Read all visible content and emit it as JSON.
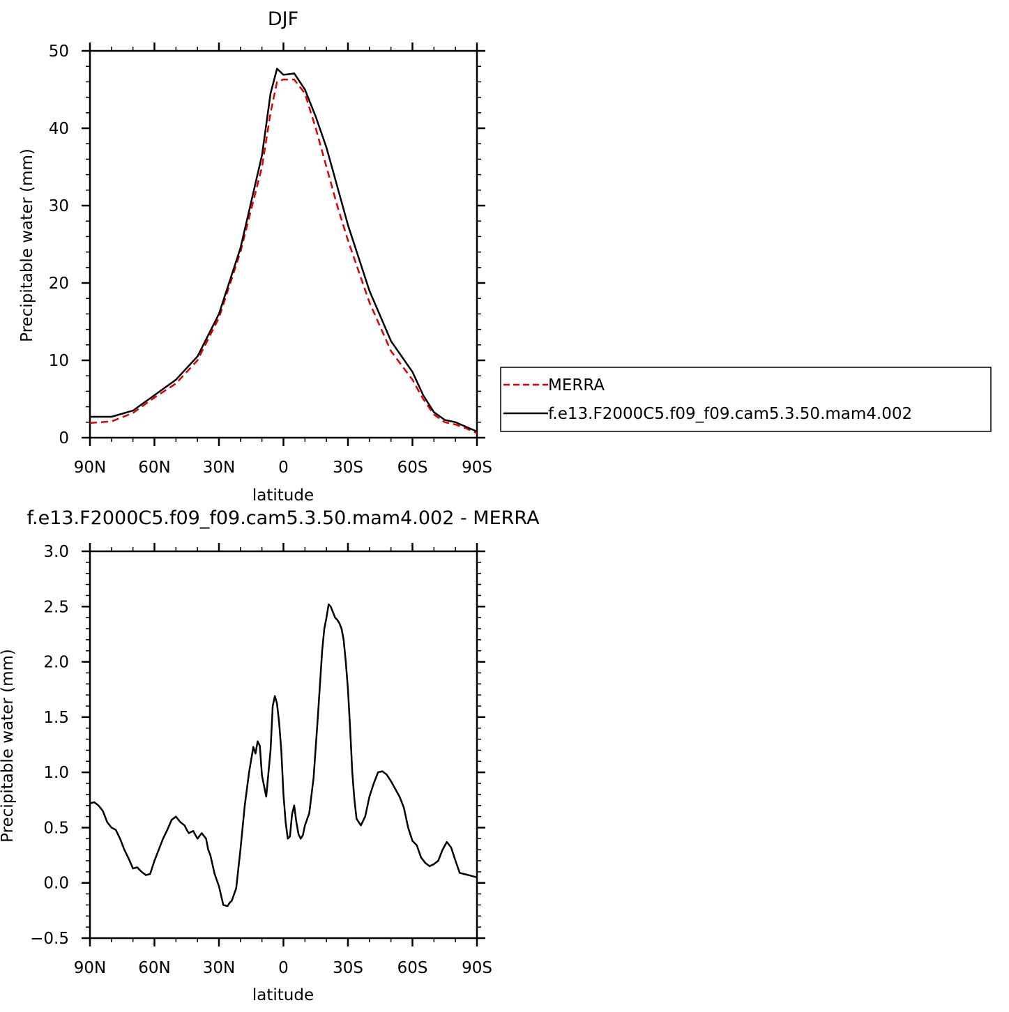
{
  "chart_data": [
    {
      "type": "line",
      "title": "DJF",
      "xlabel": "latitude",
      "ylabel": "Precipitable water  (mm)",
      "xlim": [
        -90,
        90
      ],
      "ylim": [
        0,
        50
      ],
      "x_ticks": [
        -90,
        -60,
        -30,
        0,
        30,
        60,
        90
      ],
      "x_tick_labels": [
        "90N",
        "60N",
        "30N",
        "0",
        "30S",
        "60S",
        "90S"
      ],
      "y_ticks": [
        0,
        10,
        20,
        30,
        40,
        50
      ],
      "y_tick_labels": [
        "0",
        "10",
        "20",
        "30",
        "40",
        "50"
      ],
      "legend_position": "right",
      "x_note": "x values are latitude from 90N (-90) to 90S (90)",
      "series": [
        {
          "name": "MERRA",
          "color": "#e00000",
          "dash": "dashed",
          "x": [
            -90,
            -80,
            -70,
            -60,
            -50,
            -40,
            -30,
            -20,
            -10,
            -6,
            -3,
            0,
            5,
            10,
            15,
            20,
            25,
            30,
            40,
            50,
            60,
            65,
            70,
            75,
            80,
            85,
            90
          ],
          "y": [
            1.9,
            2.1,
            3.2,
            5.2,
            7.0,
            10.0,
            15.5,
            24.0,
            35.0,
            42.0,
            46.0,
            46.3,
            46.3,
            44.5,
            40.0,
            35.0,
            30.0,
            25.5,
            17.5,
            11.2,
            7.5,
            5.0,
            3.0,
            2.0,
            1.7,
            1.2,
            0.6
          ]
        },
        {
          "name": "f.e13.F2000C5.f09_f09.cam5.3.50.mam4.002",
          "color": "#000000",
          "dash": "solid",
          "x": [
            -90,
            -80,
            -70,
            -60,
            -50,
            -40,
            -30,
            -20,
            -10,
            -6,
            -3,
            0,
            3,
            5,
            10,
            15,
            20,
            25,
            30,
            40,
            50,
            60,
            65,
            70,
            75,
            80,
            85,
            90
          ],
          "y": [
            2.7,
            2.7,
            3.5,
            5.5,
            7.5,
            10.5,
            16.0,
            24.5,
            36.5,
            44.5,
            47.7,
            46.9,
            47.0,
            47.1,
            45.0,
            41.5,
            37.5,
            32.5,
            27.5,
            19.0,
            12.5,
            8.5,
            5.5,
            3.3,
            2.3,
            2.0,
            1.4,
            0.8
          ]
        }
      ]
    },
    {
      "type": "line",
      "title": "f.e13.F2000C5.f09_f09.cam5.3.50.mam4.002  -  MERRA",
      "xlabel": "latitude",
      "ylabel": "Precipitable water  (mm)",
      "xlim": [
        -90,
        90
      ],
      "ylim": [
        -0.5,
        3.0
      ],
      "x_ticks": [
        -90,
        -60,
        -30,
        0,
        30,
        60,
        90
      ],
      "x_tick_labels": [
        "90N",
        "60N",
        "30N",
        "0",
        "30S",
        "60S",
        "90S"
      ],
      "y_ticks": [
        -0.5,
        0.0,
        0.5,
        1.0,
        1.5,
        2.0,
        2.5,
        3.0
      ],
      "y_tick_labels": [
        "−0.5",
        "0.0",
        "0.5",
        "1.0",
        "1.5",
        "2.0",
        "2.5",
        "3.0"
      ],
      "series": [
        {
          "color": "#000000",
          "dash": "solid",
          "x": [
            -90,
            -88,
            -86,
            -84,
            -82,
            -80,
            -78,
            -76,
            -74,
            -72,
            -70,
            -68,
            -66,
            -64,
            -62,
            -60,
            -58,
            -56,
            -54,
            -52,
            -50,
            -48,
            -46,
            -45,
            -44,
            -42,
            -40,
            -38,
            -36,
            -35,
            -34,
            -32,
            -30,
            -28,
            -26,
            -25,
            -24,
            -22,
            -20,
            -18,
            -16,
            -14,
            -13,
            -12,
            -11,
            -10,
            -8,
            -6,
            -5,
            -4,
            -3,
            -2,
            -1,
            0,
            1,
            2,
            3,
            4,
            5,
            6,
            7,
            8,
            9,
            10,
            12,
            14,
            16,
            18,
            19,
            20,
            21,
            22,
            23,
            24,
            25,
            26,
            27,
            28,
            29,
            30,
            31,
            32,
            33,
            34,
            36,
            38,
            40,
            42,
            44,
            46,
            48,
            50,
            52,
            54,
            56,
            58,
            60,
            62,
            64,
            66,
            68,
            70,
            72,
            74,
            76,
            78,
            80,
            82,
            84,
            86,
            88,
            90
          ],
          "y": [
            0.72,
            0.73,
            0.7,
            0.65,
            0.55,
            0.5,
            0.48,
            0.4,
            0.3,
            0.22,
            0.13,
            0.14,
            0.1,
            0.07,
            0.08,
            0.2,
            0.3,
            0.4,
            0.48,
            0.57,
            0.6,
            0.55,
            0.52,
            0.48,
            0.45,
            0.47,
            0.4,
            0.45,
            0.4,
            0.3,
            0.25,
            0.08,
            -0.03,
            -0.2,
            -0.21,
            -0.18,
            -0.16,
            -0.05,
            0.3,
            0.7,
            1.0,
            1.23,
            1.17,
            1.28,
            1.24,
            0.97,
            0.78,
            1.2,
            1.6,
            1.69,
            1.62,
            1.45,
            1.2,
            0.8,
            0.55,
            0.4,
            0.42,
            0.62,
            0.7,
            0.55,
            0.44,
            0.4,
            0.43,
            0.52,
            0.63,
            0.95,
            1.5,
            2.1,
            2.3,
            2.4,
            2.52,
            2.5,
            2.45,
            2.4,
            2.38,
            2.35,
            2.3,
            2.2,
            2.0,
            1.75,
            1.4,
            1.0,
            0.75,
            0.58,
            0.52,
            0.6,
            0.78,
            0.9,
            1.0,
            1.01,
            0.98,
            0.92,
            0.85,
            0.78,
            0.68,
            0.5,
            0.38,
            0.34,
            0.23,
            0.18,
            0.15,
            0.17,
            0.2,
            0.3,
            0.37,
            0.32,
            0.2,
            0.09,
            0.08,
            0.07,
            0.06,
            0.05
          ]
        }
      ]
    }
  ]
}
